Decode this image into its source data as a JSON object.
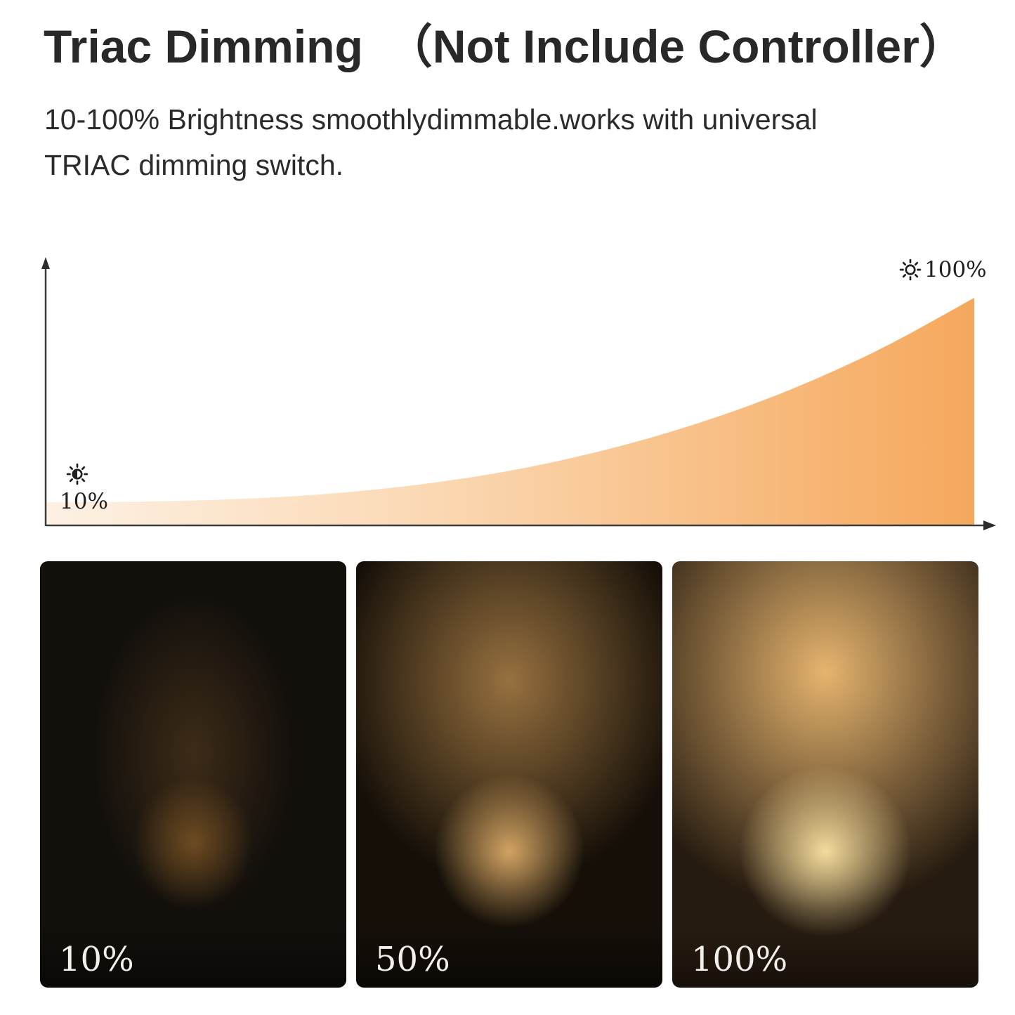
{
  "page": {
    "background_color": "#ffffff",
    "title": "Triac Dimming　（Not Include Controller）",
    "subtitle": "10-100% Brightness smoothlydimmable.works with universal TRIAC dimming switch."
  },
  "chart": {
    "axis_color": "#3c3c3c",
    "accent_color": "#f5a85c"
  },
  "chart_data": {
    "type": "area",
    "title": "",
    "xlabel": "",
    "ylabel": "",
    "x": [
      0,
      10,
      20,
      30,
      40,
      50,
      60,
      70,
      80,
      90,
      100
    ],
    "series": [
      {
        "name": "Brightness (%)",
        "values": [
          10,
          10.2,
          11.2,
          13.5,
          17.6,
          23.8,
          32.7,
          44.4,
          59.2,
          77.7,
          100
        ]
      }
    ],
    "ylim": [
      0,
      100
    ],
    "grid": false,
    "legend": false,
    "annotations": [
      {
        "label": "10%",
        "icon": "brightness-low-icon",
        "position": "bottom-left"
      },
      {
        "label": "100%",
        "icon": "brightness-high-icon",
        "position": "top-right"
      }
    ],
    "area_gradient": [
      "#fdf1e4",
      "#fbd9b5",
      "#f5a85c"
    ]
  },
  "photos": [
    {
      "label": "10%"
    },
    {
      "label": "50%"
    },
    {
      "label": "100%"
    }
  ]
}
